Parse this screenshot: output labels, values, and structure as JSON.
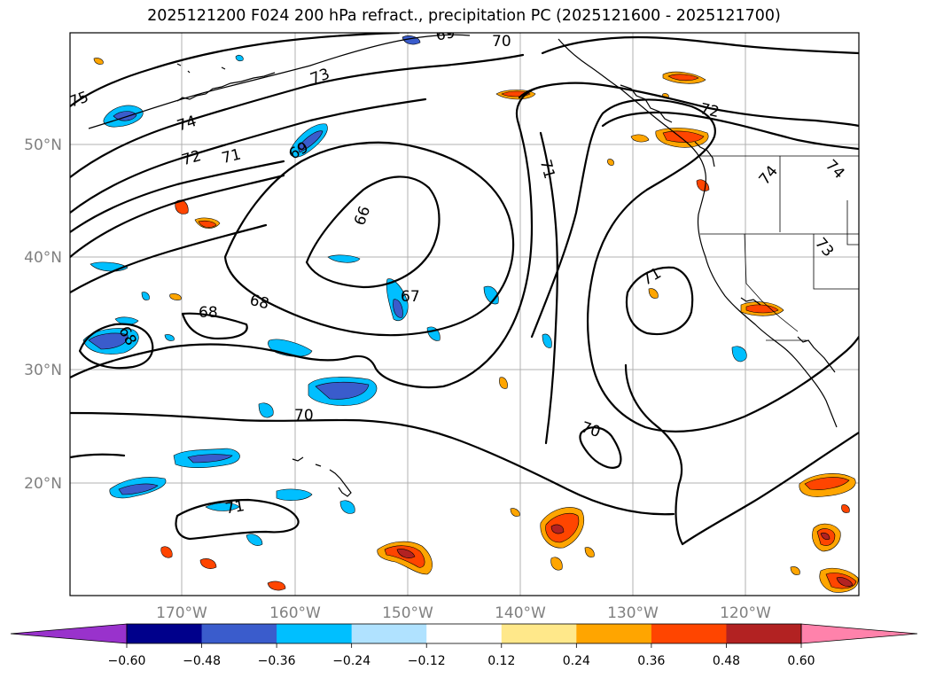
{
  "title": "2025121200 F024 200 hPa refract., precipitation PC (2025121600 - 2025121700)",
  "map": {
    "lat_labels": [
      "50°N",
      "40°N",
      "30°N",
      "20°N"
    ],
    "lon_labels": [
      "170°W",
      "160°W",
      "150°W",
      "140°W",
      "130°W",
      "120°W"
    ],
    "contour_labels": [
      "75",
      "74",
      "73",
      "72",
      "71",
      "70",
      "69",
      "68",
      "67",
      "66"
    ]
  },
  "colorbar": {
    "ticks": [
      "−0.60",
      "−0.48",
      "−0.36",
      "−0.24",
      "−0.12",
      "0.12",
      "0.24",
      "0.36",
      "0.48",
      "0.60"
    ],
    "colors": {
      "under": "#9932cc",
      "bins": [
        "#00008b",
        "#3a5ccc",
        "#00bfff",
        "#b0e2ff",
        "#ffffff",
        "#ffe88a",
        "#ffa500",
        "#ff4500",
        "#b22222"
      ],
      "over": "#ff82ab"
    }
  }
}
